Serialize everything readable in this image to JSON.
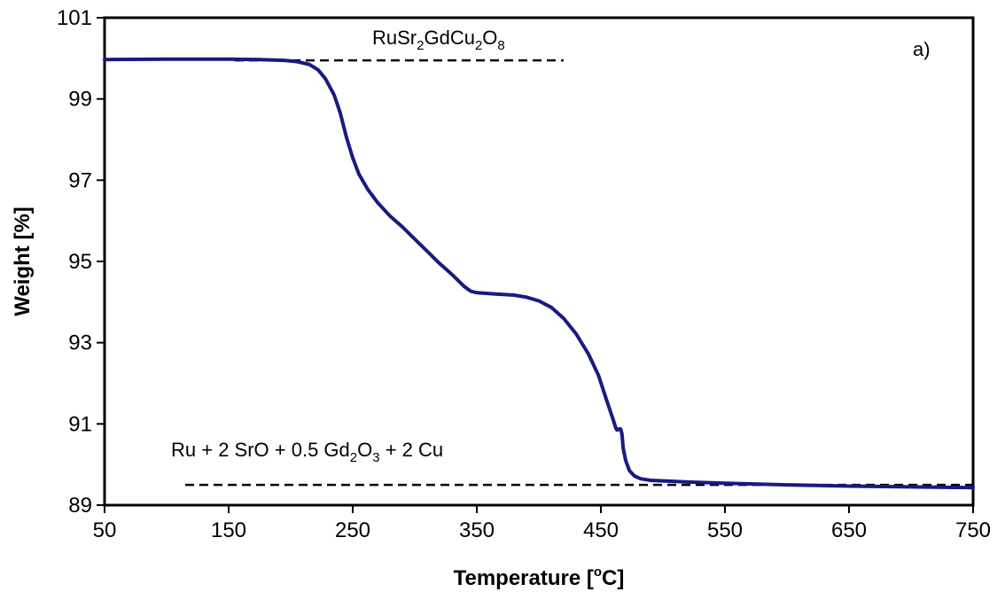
{
  "chart_data": {
    "type": "line",
    "title": "",
    "xlabel": "Temperature [",
    "xlabel_sup": "o",
    "xlabel_end": "C]",
    "ylabel": "Weight [%]",
    "xlim": [
      50,
      750
    ],
    "ylim": [
      89,
      101
    ],
    "x_ticks": [
      50,
      150,
      250,
      350,
      450,
      550,
      650,
      750
    ],
    "y_ticks": [
      89,
      91,
      93,
      95,
      97,
      99,
      101
    ],
    "grid": false,
    "series": [
      {
        "color": "#1a1a80",
        "points": [
          [
            50,
            99.97
          ],
          [
            100,
            99.98
          ],
          [
            150,
            99.98
          ],
          [
            175,
            99.97
          ],
          [
            195,
            99.95
          ],
          [
            205,
            99.92
          ],
          [
            215,
            99.85
          ],
          [
            222,
            99.72
          ],
          [
            228,
            99.5
          ],
          [
            235,
            99.1
          ],
          [
            240,
            98.65
          ],
          [
            245,
            98.05
          ],
          [
            250,
            97.55
          ],
          [
            255,
            97.15
          ],
          [
            262,
            96.78
          ],
          [
            270,
            96.45
          ],
          [
            280,
            96.12
          ],
          [
            290,
            95.85
          ],
          [
            300,
            95.55
          ],
          [
            310,
            95.25
          ],
          [
            320,
            94.95
          ],
          [
            330,
            94.68
          ],
          [
            340,
            94.38
          ],
          [
            345,
            94.27
          ],
          [
            350,
            94.23
          ],
          [
            365,
            94.2
          ],
          [
            380,
            94.17
          ],
          [
            390,
            94.12
          ],
          [
            400,
            94.03
          ],
          [
            410,
            93.87
          ],
          [
            420,
            93.6
          ],
          [
            430,
            93.22
          ],
          [
            440,
            92.72
          ],
          [
            448,
            92.2
          ],
          [
            455,
            91.55
          ],
          [
            460,
            91.1
          ],
          [
            462,
            90.9
          ],
          [
            463,
            90.85
          ],
          [
            464,
            90.86
          ],
          [
            465,
            90.88
          ],
          [
            466,
            90.87
          ],
          [
            467,
            90.75
          ],
          [
            468,
            90.4
          ],
          [
            470,
            90.1
          ],
          [
            473,
            89.85
          ],
          [
            477,
            89.72
          ],
          [
            482,
            89.65
          ],
          [
            490,
            89.61
          ],
          [
            520,
            89.57
          ],
          [
            550,
            89.54
          ],
          [
            600,
            89.5
          ],
          [
            650,
            89.47
          ],
          [
            700,
            89.45
          ],
          [
            750,
            89.43
          ]
        ]
      }
    ],
    "annotations": [
      {
        "base": "RuSr",
        "sub1": "2",
        "mid": "GdCu",
        "sub2": "2",
        "mid2": "O",
        "sub3": "8"
      },
      {
        "base": "Ru + 2 SrO + 0.5 Gd",
        "sub1": "2",
        "mid": "O",
        "sub2": "3",
        "end": " + 2 Cu"
      },
      {
        "text": "a)"
      }
    ],
    "reference_lines": [
      {
        "x": [
          155,
          420
        ],
        "y": 99.95,
        "style": "dashed"
      },
      {
        "x": [
          115,
          750
        ],
        "y": 89.5,
        "style": "dashed"
      }
    ]
  }
}
